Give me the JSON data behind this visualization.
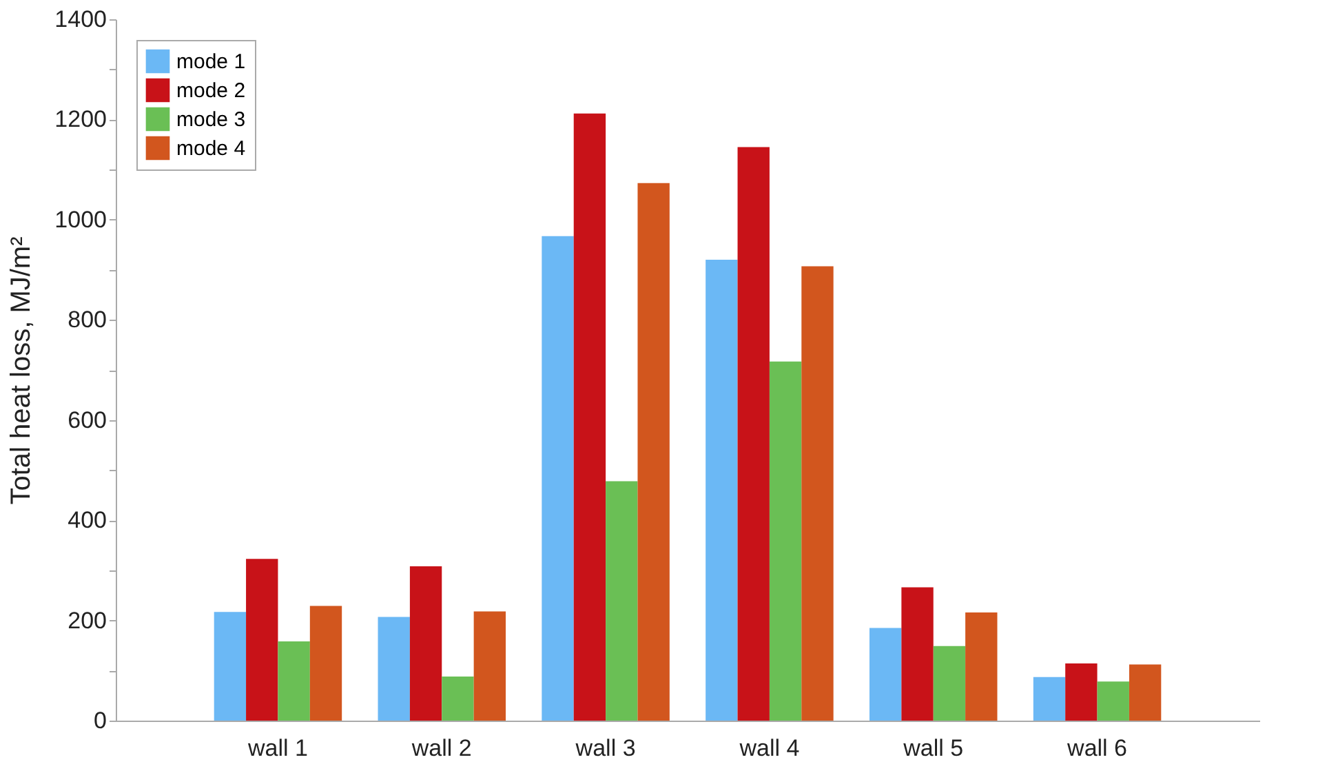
{
  "chart_data": {
    "type": "bar",
    "ylabel": "Total heat loss, MJ/m²",
    "categories": [
      "wall 1",
      "wall 2",
      "wall 3",
      "wall 4",
      "wall 5",
      "wall 6"
    ],
    "series": [
      {
        "name": "mode 1",
        "color": "#6bb8f5",
        "values": [
          217,
          207,
          967,
          920,
          185,
          87
        ]
      },
      {
        "name": "mode 2",
        "color": "#c81218",
        "values": [
          323,
          308,
          1212,
          1145,
          266,
          114
        ]
      },
      {
        "name": "mode 3",
        "color": "#6abf55",
        "values": [
          158,
          88,
          478,
          717,
          149,
          78
        ]
      },
      {
        "name": "mode 4",
        "color": "#d2561e",
        "values": [
          229,
          218,
          1073,
          907,
          216,
          112
        ]
      }
    ],
    "ylim": [
      0,
      1400
    ],
    "yticks": [
      0,
      {
        "value": 100,
        "label": null
      },
      200,
      {
        "value": 300,
        "label": null
      },
      400,
      {
        "value": 500,
        "label": null
      },
      600,
      {
        "value": 700,
        "label": null
      },
      800,
      {
        "value": 900,
        "label": null
      },
      1000,
      {
        "value": 1100,
        "label": null
      },
      1200,
      {
        "value": 1300,
        "label": null
      },
      1400
    ],
    "grid": false,
    "legend": "top left"
  }
}
